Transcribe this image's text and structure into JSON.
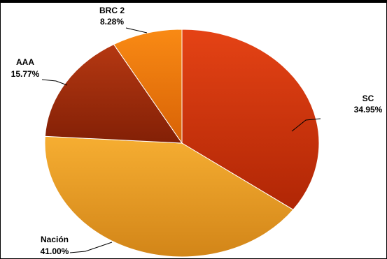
{
  "chart_data": {
    "type": "pie",
    "title": "",
    "slices": [
      {
        "label": "SC",
        "percent_label": "34.95%",
        "value": 34.95,
        "color": "#d63a10",
        "color_dark": "#b02605"
      },
      {
        "label": "Nación",
        "percent_label": "41.00%",
        "value": 41.0,
        "color": "#f0a22a",
        "color_dark": "#cf8418"
      },
      {
        "label": "AAA",
        "percent_label": "15.77%",
        "value": 15.77,
        "color": "#a8300e",
        "color_dark": "#852206"
      },
      {
        "label": "BRC 2",
        "percent_label": "8.28%",
        "value": 8.28,
        "color": "#f27a10",
        "color_dark": "#cf5e06"
      }
    ],
    "legend": "none",
    "labels": "outside-with-leader-lines"
  }
}
